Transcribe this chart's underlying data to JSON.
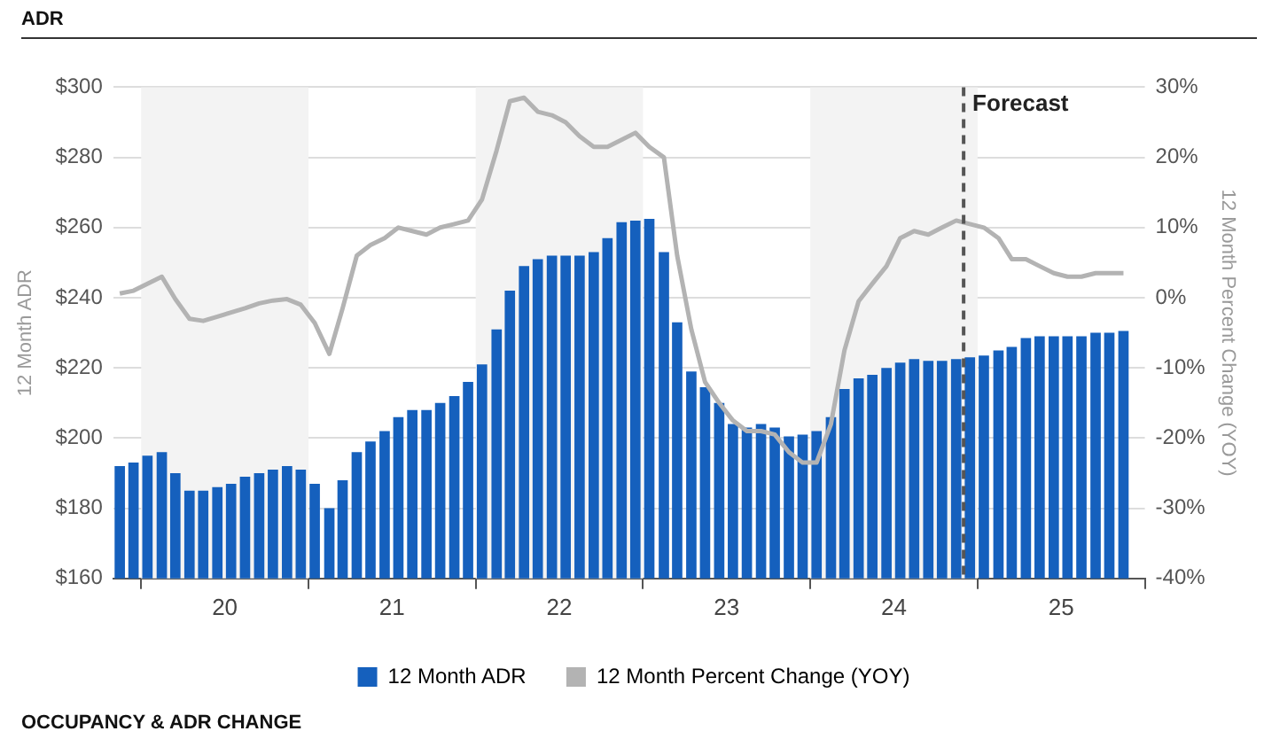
{
  "chart_data": {
    "type": "bar",
    "title": "ADR",
    "ylabel": "12 Month ADR",
    "y2label": "12 Month Percent Change (YOY)",
    "annotations": [
      "OCCUPANCY & ADR CHANGE"
    ],
    "x": [
      "2019-11-15",
      "2019-12-15",
      "2020-01-15",
      "2020-02-15",
      "2020-03-15",
      "2020-04-15",
      "2020-05-15",
      "2020-06-15",
      "2020-07-15",
      "2020-08-15",
      "2020-09-15",
      "2020-10-15",
      "2020-11-15",
      "2020-12-15",
      "2021-01-15",
      "2021-02-15",
      "2021-03-15",
      "2021-04-15",
      "2021-05-15",
      "2021-06-15",
      "2021-07-15",
      "2021-08-15",
      "2021-09-15",
      "2021-10-15",
      "2021-11-15",
      "2021-12-15",
      "2022-01-15",
      "2022-02-15",
      "2022-03-15",
      "2022-04-15",
      "2022-05-15",
      "2022-06-15",
      "2022-07-15",
      "2022-08-15",
      "2022-09-15",
      "2022-10-15",
      "2022-11-15",
      "2022-12-15",
      "2023-01-15",
      "2023-02-15",
      "2023-03-15",
      "2023-04-15",
      "2023-05-15",
      "2023-06-15",
      "2023-07-15",
      "2023-08-15",
      "2023-09-15",
      "2023-10-15",
      "2023-11-15",
      "2023-12-15",
      "2024-01-15",
      "2024-02-15",
      "2024-03-15",
      "2024-04-15",
      "2024-05-15",
      "2024-06-15",
      "2024-07-15",
      "2024-08-15",
      "2024-09-15",
      "2024-10-15",
      "2024-11-15",
      "2024-12-15",
      "2025-01-15",
      "2025-02-15",
      "2025-03-15",
      "2025-04-15",
      "2025-05-15",
      "2025-06-15",
      "2025-07-15",
      "2025-08-15",
      "2025-09-15",
      "2025-10-15",
      "2025-11-15"
    ],
    "series": [
      {
        "name": "12 Month ADR",
        "color": "#1560bd",
        "values": [
          192,
          193,
          195,
          196,
          190,
          185,
          185,
          186,
          187,
          189,
          190,
          191,
          192,
          191,
          187,
          180,
          188,
          196,
          199,
          202,
          206,
          208,
          208,
          210,
          212,
          216,
          221,
          231,
          242,
          249,
          251,
          252,
          252,
          252,
          253,
          257,
          261.5,
          262,
          262.5,
          253,
          233,
          219,
          214.5,
          210,
          204,
          203,
          204,
          203,
          200.5,
          201,
          202,
          206,
          214,
          217,
          218,
          220,
          221.5,
          222.5,
          222,
          222,
          222.5,
          223,
          223.5,
          225,
          226,
          228.5,
          229,
          229,
          229,
          229,
          230,
          230,
          230.5
        ]
      },
      {
        "name": "12 Month Percent Change (YOY)",
        "type": "line",
        "axis": "y2",
        "color": "#b3b3b3",
        "values": [
          0.6,
          1,
          2,
          3,
          -0.2,
          -3,
          -3.3,
          -2.7,
          -2.1,
          -1.5,
          -0.8,
          -0.4,
          -0.2,
          -1,
          -3.6,
          -8,
          -1.5,
          6,
          7.5,
          8.5,
          10,
          9.5,
          9,
          10,
          10.5,
          11,
          14,
          21,
          28,
          28.5,
          26.5,
          26,
          25,
          23,
          21.5,
          21.5,
          22.5,
          23.5,
          21.5,
          20,
          6,
          -4.5,
          -12,
          -15,
          -17.5,
          -19,
          -19,
          -19.5,
          -22,
          -23.5,
          -23.5,
          -18,
          -7.5,
          -0.5,
          2,
          4.5,
          8.5,
          9.5,
          9,
          10,
          11,
          10.5,
          10,
          8.5,
          5.5,
          5.5,
          4.5,
          3.5,
          3,
          3,
          3.5,
          3.5,
          3.5
        ]
      }
    ],
    "xlim": [
      "2019-11-01",
      "2026-01-01"
    ],
    "xticks": [
      {
        "value": "2020-01-01",
        "label": null
      },
      {
        "value": "2020-07-01",
        "label": "20"
      },
      {
        "value": "2021-01-01",
        "label": null
      },
      {
        "value": "2021-07-01",
        "label": "21"
      },
      {
        "value": "2022-01-01",
        "label": null
      },
      {
        "value": "2022-07-01",
        "label": "22"
      },
      {
        "value": "2023-01-01",
        "label": null
      },
      {
        "value": "2023-07-01",
        "label": "23"
      },
      {
        "value": "2024-01-01",
        "label": null
      },
      {
        "value": "2024-07-01",
        "label": "24"
      },
      {
        "value": "2025-01-01",
        "label": null
      },
      {
        "value": "2025-07-01",
        "label": "25"
      },
      {
        "value": "2026-01-01",
        "label": null
      }
    ],
    "ylim": [
      160,
      300
    ],
    "yticks": [
      {
        "value": 160,
        "label": "$160"
      },
      {
        "value": 180,
        "label": "$180"
      },
      {
        "value": 200,
        "label": "$200"
      },
      {
        "value": 220,
        "label": "$220"
      },
      {
        "value": 240,
        "label": "$240"
      },
      {
        "value": 260,
        "label": "$260"
      },
      {
        "value": 280,
        "label": "$280"
      },
      {
        "value": 300,
        "label": "$300"
      }
    ],
    "y2lim": [
      -40,
      30
    ],
    "y2ticks": [
      {
        "value": -40,
        "label": "-40%"
      },
      {
        "value": -30,
        "label": "-30%"
      },
      {
        "value": -20,
        "label": "-20%"
      },
      {
        "value": -10,
        "label": "-10%"
      },
      {
        "value": 0,
        "label": "0%"
      },
      {
        "value": 10,
        "label": "10%"
      },
      {
        "value": 20,
        "label": "20%"
      },
      {
        "value": 30,
        "label": "30%"
      }
    ],
    "bands": [
      {
        "axis": "x",
        "from": "2020-01-01",
        "to": "2021-01-01",
        "color": "#f3f3f3"
      },
      {
        "axis": "x",
        "from": "2022-01-01",
        "to": "2023-01-01",
        "color": "#f3f3f3"
      },
      {
        "axis": "x",
        "from": "2024-01-01",
        "to": "2025-01-01",
        "color": "#f3f3f3"
      }
    ],
    "ref_lines": [
      {
        "axis": "x",
        "value": "2024-12-01",
        "label": "Forecast",
        "color": "#555555",
        "line_style": "dashed"
      }
    ],
    "grid": "y",
    "legend": "bottom"
  }
}
